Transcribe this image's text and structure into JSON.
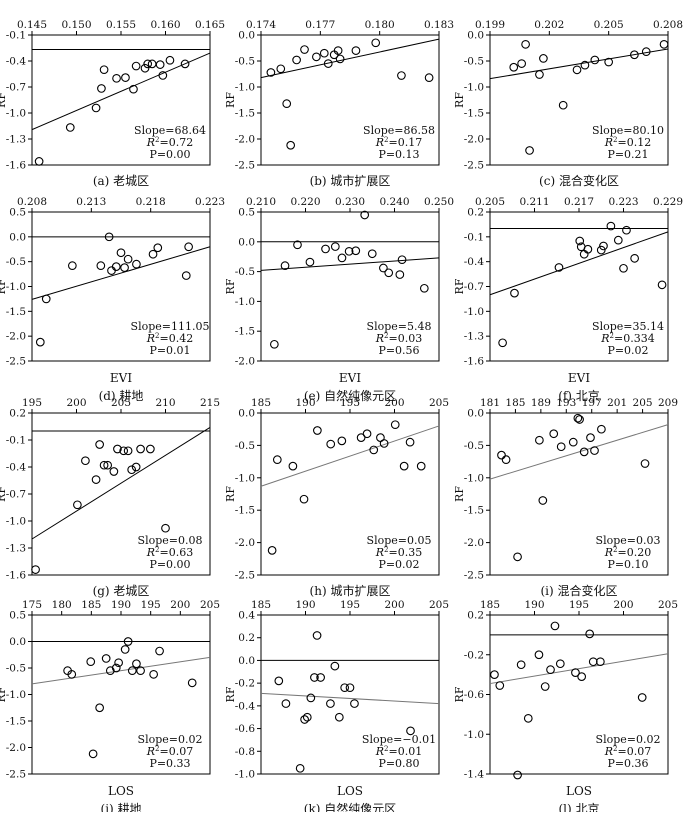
{
  "figure": {
    "rows": [
      {
        "x_axis_label": ""
      },
      {
        "x_axis_label": "EVI"
      },
      {
        "x_axis_label": ""
      },
      {
        "x_axis_label": "LOS"
      }
    ]
  },
  "chart_data": [
    {
      "type": "scatter",
      "caption": "(a) 老城区",
      "ylabel": "RF",
      "xlabel": "",
      "xlim": [
        0.145,
        0.165
      ],
      "xticks": [
        "0.145",
        "0.150",
        "0.155",
        "0.160",
        "0.165"
      ],
      "ylim": [
        -1.6,
        0.2
      ],
      "yticks": [
        "-0.1",
        "-0.4",
        "-0.7",
        "-1.0",
        "-1.3",
        "-1.6"
      ],
      "refline": true,
      "x": [
        0.1458,
        0.1493,
        0.1522,
        0.1528,
        0.1531,
        0.1545,
        0.1555,
        0.1564,
        0.1567,
        0.1577,
        0.158,
        0.1585,
        0.1594,
        0.1597,
        0.1605,
        0.1622
      ],
      "y": [
        -1.55,
        -1.08,
        -0.81,
        -0.54,
        -0.28,
        -0.4,
        -0.39,
        -0.55,
        -0.23,
        -0.26,
        -0.2,
        -0.2,
        -0.21,
        -0.36,
        -0.15,
        -0.2
      ],
      "trend": [
        -1.11,
        -0.05
      ],
      "stats": {
        "slope": "Slope=68.64",
        "r2_sym": "R",
        "r2_val": "=0.72",
        "p": "P=0.00"
      }
    },
    {
      "type": "scatter",
      "caption": "(b) 城市扩展区",
      "ylabel": "RF",
      "xlabel": "",
      "xlim": [
        0.174,
        0.183
      ],
      "xticks": [
        "0.174",
        "0.177",
        "0.180",
        "0.183"
      ],
      "ylim": [
        -2.5,
        0.0
      ],
      "yticks": [
        "0.0",
        "-0.5",
        "-1.0",
        "-1.5",
        "-2.0",
        "-2.5"
      ],
      "refline": true,
      "x": [
        0.1745,
        0.175,
        0.1753,
        0.1755,
        0.1758,
        0.1762,
        0.1768,
        0.1772,
        0.1774,
        0.1777,
        0.1779,
        0.178,
        0.1788,
        0.1798,
        0.1811,
        0.1825
      ],
      "y": [
        -0.72,
        -0.65,
        -1.32,
        -2.12,
        -0.48,
        -0.28,
        -0.42,
        -0.35,
        -0.55,
        -0.38,
        -0.3,
        -0.46,
        -0.3,
        -0.15,
        -0.78,
        -0.82
      ],
      "trend": [
        -0.82,
        -0.08
      ],
      "stats": {
        "slope": "Slope=86.58",
        "r2_sym": "R",
        "r2_val": "=0.17",
        "p": "P=0.13"
      }
    },
    {
      "type": "scatter",
      "caption": "(c) 混合变化区",
      "ylabel": "RF",
      "xlabel": "",
      "xlim": [
        0.199,
        0.208
      ],
      "xticks": [
        "0.199",
        "0.202",
        "0.205",
        "0.208"
      ],
      "ylim": [
        -2.5,
        0.0
      ],
      "yticks": [
        "0.0",
        "-0.5",
        "-1.0",
        "-1.5",
        "-2.0",
        "-2.5"
      ],
      "refline": true,
      "x": [
        0.2002,
        0.2006,
        0.2008,
        0.201,
        0.2015,
        0.2017,
        0.2027,
        0.2034,
        0.2038,
        0.2043,
        0.205,
        0.2063,
        0.2069,
        0.2078
      ],
      "y": [
        -0.62,
        -0.55,
        -0.18,
        -2.22,
        -0.76,
        -0.45,
        -1.35,
        -0.67,
        -0.58,
        -0.48,
        -0.52,
        -0.38,
        -0.32,
        -0.18
      ],
      "trend": [
        -0.84,
        -0.27
      ],
      "stats": {
        "slope": "Slope=80.10",
        "r2_sym": "R",
        "r2_val": "=0.12",
        "p": "P=0.21"
      }
    },
    {
      "type": "scatter",
      "caption": "(d) 耕地",
      "ylabel": "RF",
      "xlabel": "EVI",
      "xlim": [
        0.208,
        0.223
      ],
      "xticks": [
        "0.208",
        "0.213",
        "0.218",
        "0.223"
      ],
      "ylim": [
        -2.5,
        0.5
      ],
      "yticks": [
        "0.5",
        "0.0",
        "-0.5",
        "-1.0",
        "-1.5",
        "-2.0",
        "-2.5"
      ],
      "refline": true,
      "x": [
        0.2087,
        0.2092,
        0.2114,
        0.2138,
        0.2145,
        0.2147,
        0.2151,
        0.2155,
        0.2158,
        0.2161,
        0.2168,
        0.2182,
        0.2186,
        0.221,
        0.2212
      ],
      "y": [
        -2.12,
        -1.25,
        -0.58,
        -0.58,
        0.0,
        -0.68,
        -0.6,
        -0.32,
        -0.62,
        -0.45,
        -0.55,
        -0.35,
        -0.22,
        -0.78,
        -0.2
      ],
      "trend": [
        -1.26,
        -0.2
      ],
      "stats": {
        "slope": "Slope=111.05",
        "r2_sym": "R",
        "r2_val": "=0.42",
        "p": "P=0.01"
      }
    },
    {
      "type": "scatter",
      "caption": "(e) 自然纯像元区",
      "ylabel": "RF",
      "xlabel": "EVI",
      "xlim": [
        0.21,
        0.25
      ],
      "xticks": [
        "0.210",
        "0.220",
        "0.230",
        "0.240",
        "0.250"
      ],
      "ylim": [
        -2.0,
        0.5
      ],
      "yticks": [
        "0.5",
        "0.0",
        "-0.5",
        "-1.0",
        "-1.5",
        "-2.0"
      ],
      "refline": true,
      "x": [
        0.213,
        0.2154,
        0.2182,
        0.221,
        0.2245,
        0.2267,
        0.2282,
        0.2298,
        0.2313,
        0.2333,
        0.235,
        0.2375,
        0.2387,
        0.2412,
        0.2417,
        0.2467
      ],
      "y": [
        -1.72,
        -0.4,
        -0.05,
        -0.34,
        -0.12,
        -0.08,
        -0.27,
        -0.16,
        -0.15,
        0.45,
        -0.2,
        -0.44,
        -0.52,
        -0.55,
        -0.3,
        -0.78
      ],
      "trend": [
        -0.48,
        -0.27
      ],
      "stats": {
        "slope": "Slope=5.48",
        "r2_sym": "R",
        "r2_val": "=0.03",
        "p": "P=0.56"
      }
    },
    {
      "type": "scatter",
      "caption": "(f) 北京",
      "ylabel": "RF",
      "xlabel": "EVI",
      "xlim": [
        0.205,
        0.229
      ],
      "xticks": [
        "0.205",
        "0.211",
        "0.217",
        "0.223",
        "0.229"
      ],
      "ylim": [
        -1.6,
        0.2
      ],
      "yticks": [
        "0.2",
        "-0.1",
        "-0.4",
        "-0.7",
        "-1.0",
        "-1.3",
        "-1.6"
      ],
      "refline": true,
      "x": [
        0.2067,
        0.2083,
        0.2143,
        0.2171,
        0.2173,
        0.2177,
        0.2182,
        0.22,
        0.2203,
        0.2213,
        0.2223,
        0.223,
        0.2234,
        0.2245,
        0.2282
      ],
      "y": [
        -1.38,
        -0.78,
        -0.47,
        -0.15,
        -0.22,
        -0.31,
        -0.25,
        -0.26,
        -0.21,
        0.03,
        -0.14,
        -0.48,
        -0.02,
        -0.36,
        -0.68
      ],
      "trend": [
        -0.8,
        -0.04
      ],
      "stats": {
        "slope": "Slope=35.14",
        "r2_sym": "R",
        "r2_val": "=0.334",
        "p": "P=0.02"
      }
    },
    {
      "type": "scatter",
      "caption": "(g) 老城区",
      "ylabel": "RF",
      "xlabel": "",
      "xlim": [
        195,
        215
      ],
      "xticks": [
        "195",
        "200",
        "205",
        "210",
        "215"
      ],
      "ylim": [
        -1.6,
        0.2
      ],
      "yticks": [
        "0.2",
        "-0.1",
        "-0.4",
        "-0.7",
        "-1.0",
        "-1.3",
        "-1.6"
      ],
      "refline": true,
      "x": [
        195.4,
        200.1,
        201.0,
        202.2,
        202.6,
        203.1,
        203.5,
        204.2,
        204.6,
        205.3,
        205.8,
        206.2,
        206.7,
        207.2,
        208.3,
        210.0
      ],
      "y": [
        -1.54,
        -0.82,
        -0.33,
        -0.54,
        -0.15,
        -0.38,
        -0.38,
        -0.45,
        -0.2,
        -0.22,
        -0.22,
        -0.43,
        -0.4,
        -0.2,
        -0.2,
        -1.08
      ],
      "trend": [
        -1.2,
        0.04
      ],
      "stats": {
        "slope": "Slope=0.08",
        "r2_sym": "R",
        "r2_val": "=0.63",
        "p": "P=0.00"
      }
    },
    {
      "type": "scatter",
      "caption": "(h) 城市扩展区",
      "ylabel": "RF",
      "xlabel": "",
      "xlim": [
        181,
        205
      ],
      "xticks": [
        "185",
        "190",
        "195",
        "200",
        "205"
      ],
      "ylim": [
        -2.5,
        0.0
      ],
      "yticks": [
        "0.0",
        "-0.5",
        "-1.0",
        "-1.5",
        "-2.0",
        "-2.5"
      ],
      "refline": false,
      "x": [
        182.5,
        183.2,
        185.3,
        186.8,
        188.6,
        190.4,
        191.9,
        194.5,
        195.3,
        196.2,
        197.1,
        197.6,
        199.1,
        200.3,
        201.1,
        202.6
      ],
      "y": [
        -2.12,
        -0.72,
        -0.82,
        -1.33,
        -0.27,
        -0.48,
        -0.43,
        -0.38,
        -0.32,
        -0.57,
        -0.38,
        -0.47,
        -0.18,
        -0.82,
        -0.45,
        -0.82
      ],
      "trend": [
        -1.13,
        -0.2
      ],
      "stats": {
        "slope": "Slope=0.05",
        "r2_sym": "R",
        "r2_val": "=0.35",
        "p": "P=0.02"
      }
    },
    {
      "type": "scatter",
      "caption": "(i) 混合变化区",
      "ylabel": "RF",
      "xlabel": "",
      "xlim": [
        179,
        210
      ],
      "xticks": [
        "181",
        "185",
        "189",
        "193",
        "197",
        "201",
        "205",
        "209"
      ],
      "ylim": [
        -2.5,
        0.0
      ],
      "yticks": [
        "0.0",
        "-0.5",
        "-1.0",
        "-1.5",
        "-2.0",
        "-2.5"
      ],
      "refline": false,
      "x": [
        181.0,
        181.8,
        183.8,
        187.6,
        188.2,
        190.1,
        191.4,
        193.5,
        194.3,
        194.6,
        195.4,
        196.5,
        197.2,
        198.4,
        206.0
      ],
      "y": [
        -0.65,
        -0.72,
        -2.22,
        -0.42,
        -1.35,
        -0.32,
        -0.52,
        -0.45,
        -0.08,
        -0.1,
        -0.6,
        -0.38,
        -0.58,
        -0.25,
        -0.78
      ],
      "trend": [
        -1.02,
        -0.18
      ],
      "stats": {
        "slope": "Slope=0.03",
        "r2_sym": "R",
        "r2_val": "=0.20",
        "p": "P=0.10"
      }
    },
    {
      "type": "scatter",
      "caption": "(j) 耕地",
      "ylabel": "RF",
      "xlabel": "LOS",
      "xlim": [
        175,
        205
      ],
      "xticks": [
        "175",
        "180",
        "185",
        "190",
        "195",
        "200",
        "205"
      ],
      "ylim": [
        -2.5,
        0.5
      ],
      "yticks": [
        "0.5",
        "0.0",
        "-0.5",
        "-1.0",
        "-1.5",
        "-2.0",
        "-2.5"
      ],
      "refline": true,
      "x": [
        181.0,
        181.7,
        184.9,
        185.3,
        186.4,
        187.5,
        188.2,
        189.2,
        189.6,
        190.7,
        191.2,
        191.9,
        192.6,
        193.3,
        195.5,
        196.5,
        202.0
      ],
      "y": [
        -0.55,
        -0.62,
        -0.38,
        -2.12,
        -1.25,
        -0.32,
        -0.55,
        -0.5,
        -0.4,
        -0.15,
        0.0,
        -0.55,
        -0.42,
        -0.55,
        -0.62,
        -0.18,
        -0.78
      ],
      "trend": [
        -0.8,
        -0.3
      ],
      "stats": {
        "slope": "Slope=0.02",
        "r2_sym": "R",
        "r2_val": "=0.07",
        "p": "P=0.33"
      }
    },
    {
      "type": "scatter",
      "caption": "(k) 自然纯像元区",
      "ylabel": "RF",
      "xlabel": "LOS",
      "xlim": [
        185,
        205
      ],
      "xticks": [
        "185",
        "190",
        "195",
        "200",
        "205"
      ],
      "ylim": [
        -1.0,
        0.4
      ],
      "yticks": [
        "0.4",
        "0.2",
        "0.0",
        "-0.2",
        "-0.4",
        "-0.6",
        "-0.8",
        "-1.0"
      ],
      "refline": true,
      "x": [
        187.0,
        187.8,
        189.4,
        189.9,
        190.2,
        190.6,
        191.0,
        191.3,
        191.7,
        192.8,
        193.3,
        193.8,
        194.4,
        195.0,
        195.5,
        201.8
      ],
      "y": [
        -0.18,
        -0.38,
        -0.95,
        -0.52,
        -0.5,
        -0.33,
        -0.15,
        0.22,
        -0.15,
        -0.38,
        -0.05,
        -0.5,
        -0.24,
        -0.24,
        -0.38,
        -0.62
      ],
      "trend": [
        -0.29,
        -0.38
      ],
      "stats": {
        "slope": "Slope=−0.01",
        "r2_sym": "R",
        "r2_val": "=0.01",
        "p": "P=0.80"
      }
    },
    {
      "type": "scatter",
      "caption": "(l) 北京",
      "ylabel": "RF",
      "xlabel": "LOS",
      "xlim": [
        185,
        205
      ],
      "xticks": [
        "185",
        "190",
        "195",
        "200",
        "205"
      ],
      "ylim": [
        -1.4,
        0.2
      ],
      "yticks": [
        "0.2",
        "-0.2",
        "-0.6",
        "-1.0",
        "-1.4"
      ],
      "refline": true,
      "x": [
        185.5,
        186.1,
        188.1,
        188.5,
        189.3,
        190.5,
        191.2,
        191.8,
        192.3,
        192.9,
        194.6,
        195.3,
        196.2,
        196.6,
        197.4,
        202.1
      ],
      "y": [
        -0.4,
        -0.51,
        -1.41,
        -0.3,
        -0.84,
        -0.2,
        -0.52,
        -0.35,
        0.09,
        -0.29,
        -0.38,
        -0.42,
        0.01,
        -0.27,
        -0.27,
        -0.63
      ],
      "trend": [
        -0.49,
        -0.19
      ],
      "stats": {
        "slope": "Slope=0.02",
        "r2_sym": "R",
        "r2_val": "=0.07",
        "p": "P=0.36"
      }
    }
  ]
}
